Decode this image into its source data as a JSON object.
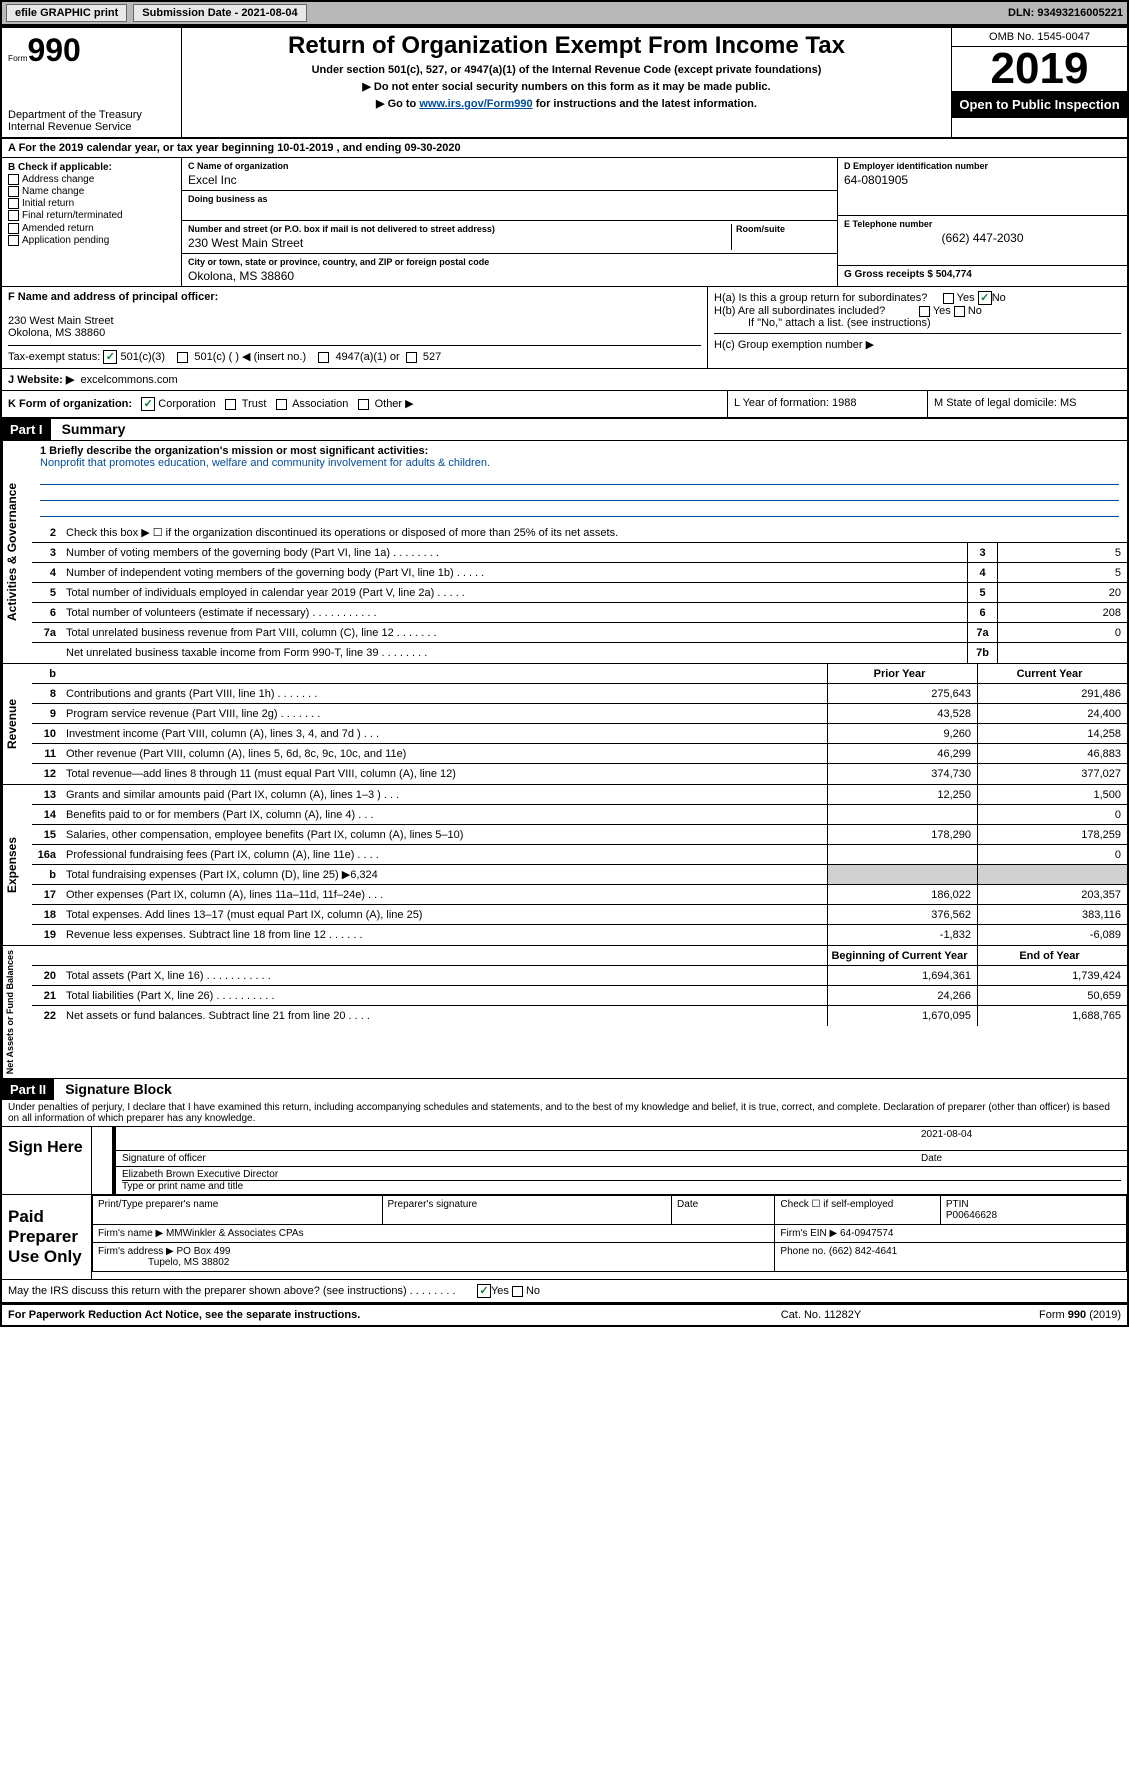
{
  "topbar": {
    "efile": "efile GRAPHIC print",
    "submission": "Submission Date - 2021-08-04",
    "dln": "DLN: 93493216005221"
  },
  "header": {
    "form_label": "Form",
    "form_number": "990",
    "dept": "Department of the Treasury\nInternal Revenue Service",
    "title": "Return of Organization Exempt From Income Tax",
    "subtitle": "Under section 501(c), 527, or 4947(a)(1) of the Internal Revenue Code (except private foundations)",
    "note1": "▶ Do not enter social security numbers on this form as it may be made public.",
    "note2_pre": "▶ Go to ",
    "note2_link": "www.irs.gov/Form990",
    "note2_post": " for instructions and the latest information.",
    "omb": "OMB No. 1545-0047",
    "year": "2019",
    "inspection": "Open to Public Inspection"
  },
  "period": "A For the 2019 calendar year, or tax year beginning 10-01-2019    , and ending 09-30-2020",
  "colB": {
    "title": "B Check if applicable:",
    "opts": [
      "Address change",
      "Name change",
      "Initial return",
      "Final return/terminated",
      "Amended return",
      "Application pending"
    ]
  },
  "colC": {
    "name_lbl": "C Name of organization",
    "name": "Excel Inc",
    "dba_lbl": "Doing business as",
    "dba": "",
    "addr_lbl": "Number and street (or P.O. box if mail is not delivered to street address)",
    "room_lbl": "Room/suite",
    "addr": "230 West Main Street",
    "city_lbl": "City or town, state or province, country, and ZIP or foreign postal code",
    "city": "Okolona, MS  38860"
  },
  "colD": {
    "ein_lbl": "D Employer identification number",
    "ein": "64-0801905",
    "phone_lbl": "E Telephone number",
    "phone": "(662) 447-2030",
    "gross_lbl": "G Gross receipts $ 504,774"
  },
  "rowF": {
    "lbl": "F  Name and address of principal officer:",
    "addr1": "230 West Main Street",
    "addr2": "Okolona, MS  38860",
    "ha": "H(a)  Is this a group return for subordinates?",
    "hb": "H(b)  Are all subordinates included?",
    "hb_note": "If \"No,\" attach a list. (see instructions)",
    "hc": "H(c)  Group exemption number ▶"
  },
  "rowI": {
    "lbl": "Tax-exempt status:",
    "o1": "501(c)(3)",
    "o2": "501(c) (  ) ◀ (insert no.)",
    "o3": "4947(a)(1) or",
    "o4": "527"
  },
  "rowJ": {
    "lbl": "J   Website: ▶",
    "val": "excelcommons.com"
  },
  "rowK": {
    "lbl": "K Form of organization:",
    "opts": [
      "Corporation",
      "Trust",
      "Association",
      "Other ▶"
    ],
    "l": "L Year of formation: 1988",
    "m": "M State of legal domicile: MS"
  },
  "partI": {
    "label": "Part I",
    "title": "Summary",
    "q1_lbl": "1  Briefly describe the organization's mission or most significant activities:",
    "q1_val": "Nonprofit that promotes education, welfare and community involvement for adults & children.",
    "q2": "Check this box ▶ ☐  if the organization discontinued its operations or disposed of more than 25% of its net assets.",
    "lines_gov": [
      {
        "n": "3",
        "t": "Number of voting members of the governing body (Part VI, line 1a)   .   .   .   .   .   .   .   .",
        "b": "3",
        "v": "5"
      },
      {
        "n": "4",
        "t": "Number of independent voting members of the governing body (Part VI, line 1b)   .   .   .   .   .",
        "b": "4",
        "v": "5"
      },
      {
        "n": "5",
        "t": "Total number of individuals employed in calendar year 2019 (Part V, line 2a)   .   .   .   .   .",
        "b": "5",
        "v": "20"
      },
      {
        "n": "6",
        "t": "Total number of volunteers (estimate if necessary)   .   .   .   .   .   .   .   .   .   .   .",
        "b": "6",
        "v": "208"
      },
      {
        "n": "7a",
        "t": "Total unrelated business revenue from Part VIII, column (C), line 12   .   .   .   .   .   .   .",
        "b": "7a",
        "v": "0"
      },
      {
        "n": "",
        "t": "Net unrelated business taxable income from Form 990-T, line 39   .   .   .   .   .   .   .   .",
        "b": "7b",
        "v": ""
      }
    ],
    "hdr_b": "b",
    "hdr_prior": "Prior Year",
    "hdr_curr": "Current Year",
    "lines_rev": [
      {
        "n": "8",
        "t": "Contributions and grants (Part VIII, line 1h)   .   .   .   .   .   .   .",
        "p": "275,643",
        "c": "291,486"
      },
      {
        "n": "9",
        "t": "Program service revenue (Part VIII, line 2g)   .   .   .   .   .   .   .",
        "p": "43,528",
        "c": "24,400"
      },
      {
        "n": "10",
        "t": "Investment income (Part VIII, column (A), lines 3, 4, and 7d )   .   .   .",
        "p": "9,260",
        "c": "14,258"
      },
      {
        "n": "11",
        "t": "Other revenue (Part VIII, column (A), lines 5, 6d, 8c, 9c, 10c, and 11e)",
        "p": "46,299",
        "c": "46,883"
      },
      {
        "n": "12",
        "t": "Total revenue—add lines 8 through 11 (must equal Part VIII, column (A), line 12)",
        "p": "374,730",
        "c": "377,027"
      }
    ],
    "lines_exp": [
      {
        "n": "13",
        "t": "Grants and similar amounts paid (Part IX, column (A), lines 1–3 )   .   .   .",
        "p": "12,250",
        "c": "1,500"
      },
      {
        "n": "14",
        "t": "Benefits paid to or for members (Part IX, column (A), line 4)   .   .   .",
        "p": "",
        "c": "0"
      },
      {
        "n": "15",
        "t": "Salaries, other compensation, employee benefits (Part IX, column (A), lines 5–10)",
        "p": "178,290",
        "c": "178,259"
      },
      {
        "n": "16a",
        "t": "Professional fundraising fees (Part IX, column (A), line 11e)   .   .   .   .",
        "p": "",
        "c": "0"
      },
      {
        "n": "b",
        "t": "Total fundraising expenses (Part IX, column (D), line 25) ▶6,324",
        "p": "SHADE",
        "c": "SHADE"
      },
      {
        "n": "17",
        "t": "Other expenses (Part IX, column (A), lines 11a–11d, 11f–24e)   .   .   .",
        "p": "186,022",
        "c": "203,357"
      },
      {
        "n": "18",
        "t": "Total expenses. Add lines 13–17 (must equal Part IX, column (A), line 25)",
        "p": "376,562",
        "c": "383,116"
      },
      {
        "n": "19",
        "t": "Revenue less expenses. Subtract line 18 from line 12   .   .   .   .   .   .",
        "p": "-1,832",
        "c": "-6,089"
      }
    ],
    "hdr_beg": "Beginning of Current Year",
    "hdr_end": "End of Year",
    "lines_net": [
      {
        "n": "20",
        "t": "Total assets (Part X, line 16)   .   .   .   .   .   .   .   .   .   .   .",
        "p": "1,694,361",
        "c": "1,739,424"
      },
      {
        "n": "21",
        "t": "Total liabilities (Part X, line 26)   .   .   .   .   .   .   .   .   .   .",
        "p": "24,266",
        "c": "50,659"
      },
      {
        "n": "22",
        "t": "Net assets or fund balances. Subtract line 21 from line 20   .   .   .   .",
        "p": "1,670,095",
        "c": "1,688,765"
      }
    ],
    "side_gov": "Activities & Governance",
    "side_rev": "Revenue",
    "side_exp": "Expenses",
    "side_net": "Net Assets or Fund Balances"
  },
  "partII": {
    "label": "Part II",
    "title": "Signature Block",
    "perjury": "Under penalties of perjury, I declare that I have examined this return, including accompanying schedules and statements, and to the best of my knowledge and belief, it is true, correct, and complete. Declaration of preparer (other than officer) is based on all information of which preparer has any knowledge.",
    "sign_here": "Sign Here",
    "sig_officer": "Signature of officer",
    "sig_date_val": "2021-08-04",
    "sig_date": "Date",
    "name_title": "Elizabeth Brown  Executive Director",
    "name_title_lbl": "Type or print name and title",
    "paid": "Paid Preparer Use Only",
    "prep_name_lbl": "Print/Type preparer's name",
    "prep_sig_lbl": "Preparer's signature",
    "prep_date_lbl": "Date",
    "prep_self": "Check ☐ if self-employed",
    "ptin_lbl": "PTIN",
    "ptin": "P00646628",
    "firm_name_lbl": "Firm's name     ▶",
    "firm_name": "MMWinkler & Associates CPAs",
    "firm_ein_lbl": "Firm's EIN ▶",
    "firm_ein": "64-0947574",
    "firm_addr_lbl": "Firm's address ▶",
    "firm_addr": "PO Box 499",
    "firm_city": "Tupelo, MS  38802",
    "firm_phone_lbl": "Phone no.",
    "firm_phone": "(662) 842-4641",
    "discuss": "May the IRS discuss this return with the preparer shown above? (see instructions)   .   .   .   .   .   .   .   ."
  },
  "footer": {
    "pra": "For Paperwork Reduction Act Notice, see the separate instructions.",
    "cat": "Cat. No. 11282Y",
    "form": "Form 990 (2019)"
  }
}
